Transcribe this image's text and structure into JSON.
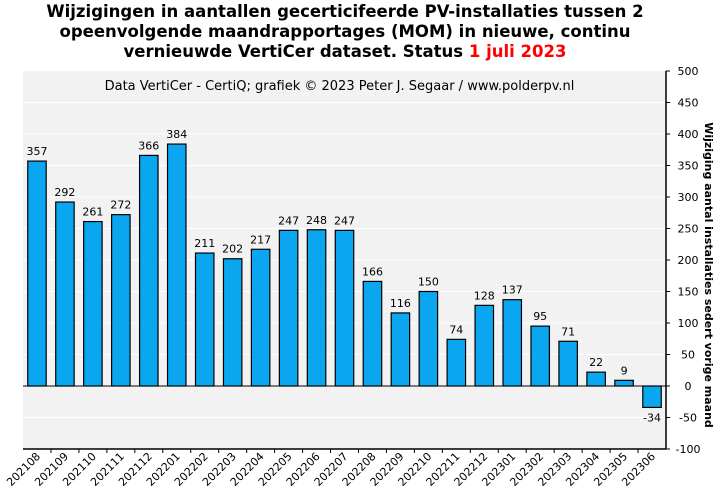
{
  "chart_data": {
    "type": "bar",
    "title_lines": [
      "Wijzigingen in aantallen gecerticifeerde PV-installaties tussen 2",
      "opeenvolgende maandrapportages (MOM) in nieuwe, continu",
      "vernieuwde VertiCer dataset. Status"
    ],
    "title_highlight": "1 juli 2023",
    "subtitle": "Data VertiCer - CertiQ; grafiek © 2023 Peter J. Segaar / www.polderpv.nl",
    "ylabel": "Wijziging aantal installaties sedert vorige maand",
    "xlabel": "",
    "categories": [
      "202108",
      "202109",
      "202110",
      "202111",
      "202112",
      "202201",
      "202202",
      "202203",
      "202204",
      "202205",
      "202206",
      "202207",
      "202208",
      "202209",
      "202210",
      "202211",
      "202212",
      "202301",
      "202302",
      "202303",
      "202304",
      "202305",
      "202306"
    ],
    "values": [
      357,
      292,
      261,
      272,
      366,
      384,
      211,
      202,
      217,
      247,
      248,
      247,
      166,
      116,
      150,
      74,
      128,
      137,
      95,
      71,
      22,
      9,
      -34
    ],
    "ylim": [
      -100,
      500
    ],
    "yticks": [
      -100,
      -50,
      0,
      50,
      100,
      150,
      200,
      250,
      300,
      350,
      400,
      450,
      500
    ],
    "y_axis_side": "right",
    "grid": true,
    "bar_color": "#0aa7f0",
    "plot_background": "#f2f2f2",
    "grid_color": "#ffffff",
    "title_highlight_color": "#ff0000"
  }
}
